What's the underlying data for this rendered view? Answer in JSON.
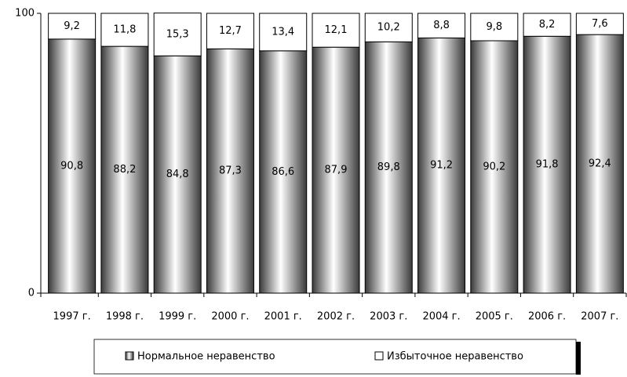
{
  "chart_data": {
    "type": "stacked_bar",
    "categories": [
      "1997 г.",
      "1998 г.",
      "1999 г.",
      "2000 г.",
      "2001 г.",
      "2002 г.",
      "2003 г.",
      "2004 г.",
      "2005 г.",
      "2006 г.",
      "2007 г."
    ],
    "series": [
      {
        "name": "Нормальное неравенство",
        "color": "#9a9a9a",
        "values": [
          90.8,
          88.2,
          84.8,
          87.3,
          86.6,
          87.9,
          89.8,
          91.2,
          90.2,
          91.8,
          92.4
        ],
        "value_labels": [
          "90,8",
          "88,2",
          "84,8",
          "87,3",
          "86,6",
          "87,9",
          "89,8",
          "91,2",
          "90,2",
          "91,8",
          "92,4"
        ]
      },
      {
        "name": "Избыточное неравенство",
        "color": "#ffffff",
        "values": [
          9.2,
          11.8,
          15.3,
          12.7,
          13.4,
          12.1,
          10.2,
          8.8,
          9.8,
          8.2,
          7.6
        ],
        "value_labels": [
          "9,2",
          "11,8",
          "15,3",
          "12,7",
          "13,4",
          "12,1",
          "10,2",
          "8,8",
          "9,8",
          "8,2",
          "7,6"
        ]
      }
    ],
    "ylim": [
      0,
      100
    ],
    "yticks": [
      0,
      100
    ],
    "legend": "bottom"
  }
}
